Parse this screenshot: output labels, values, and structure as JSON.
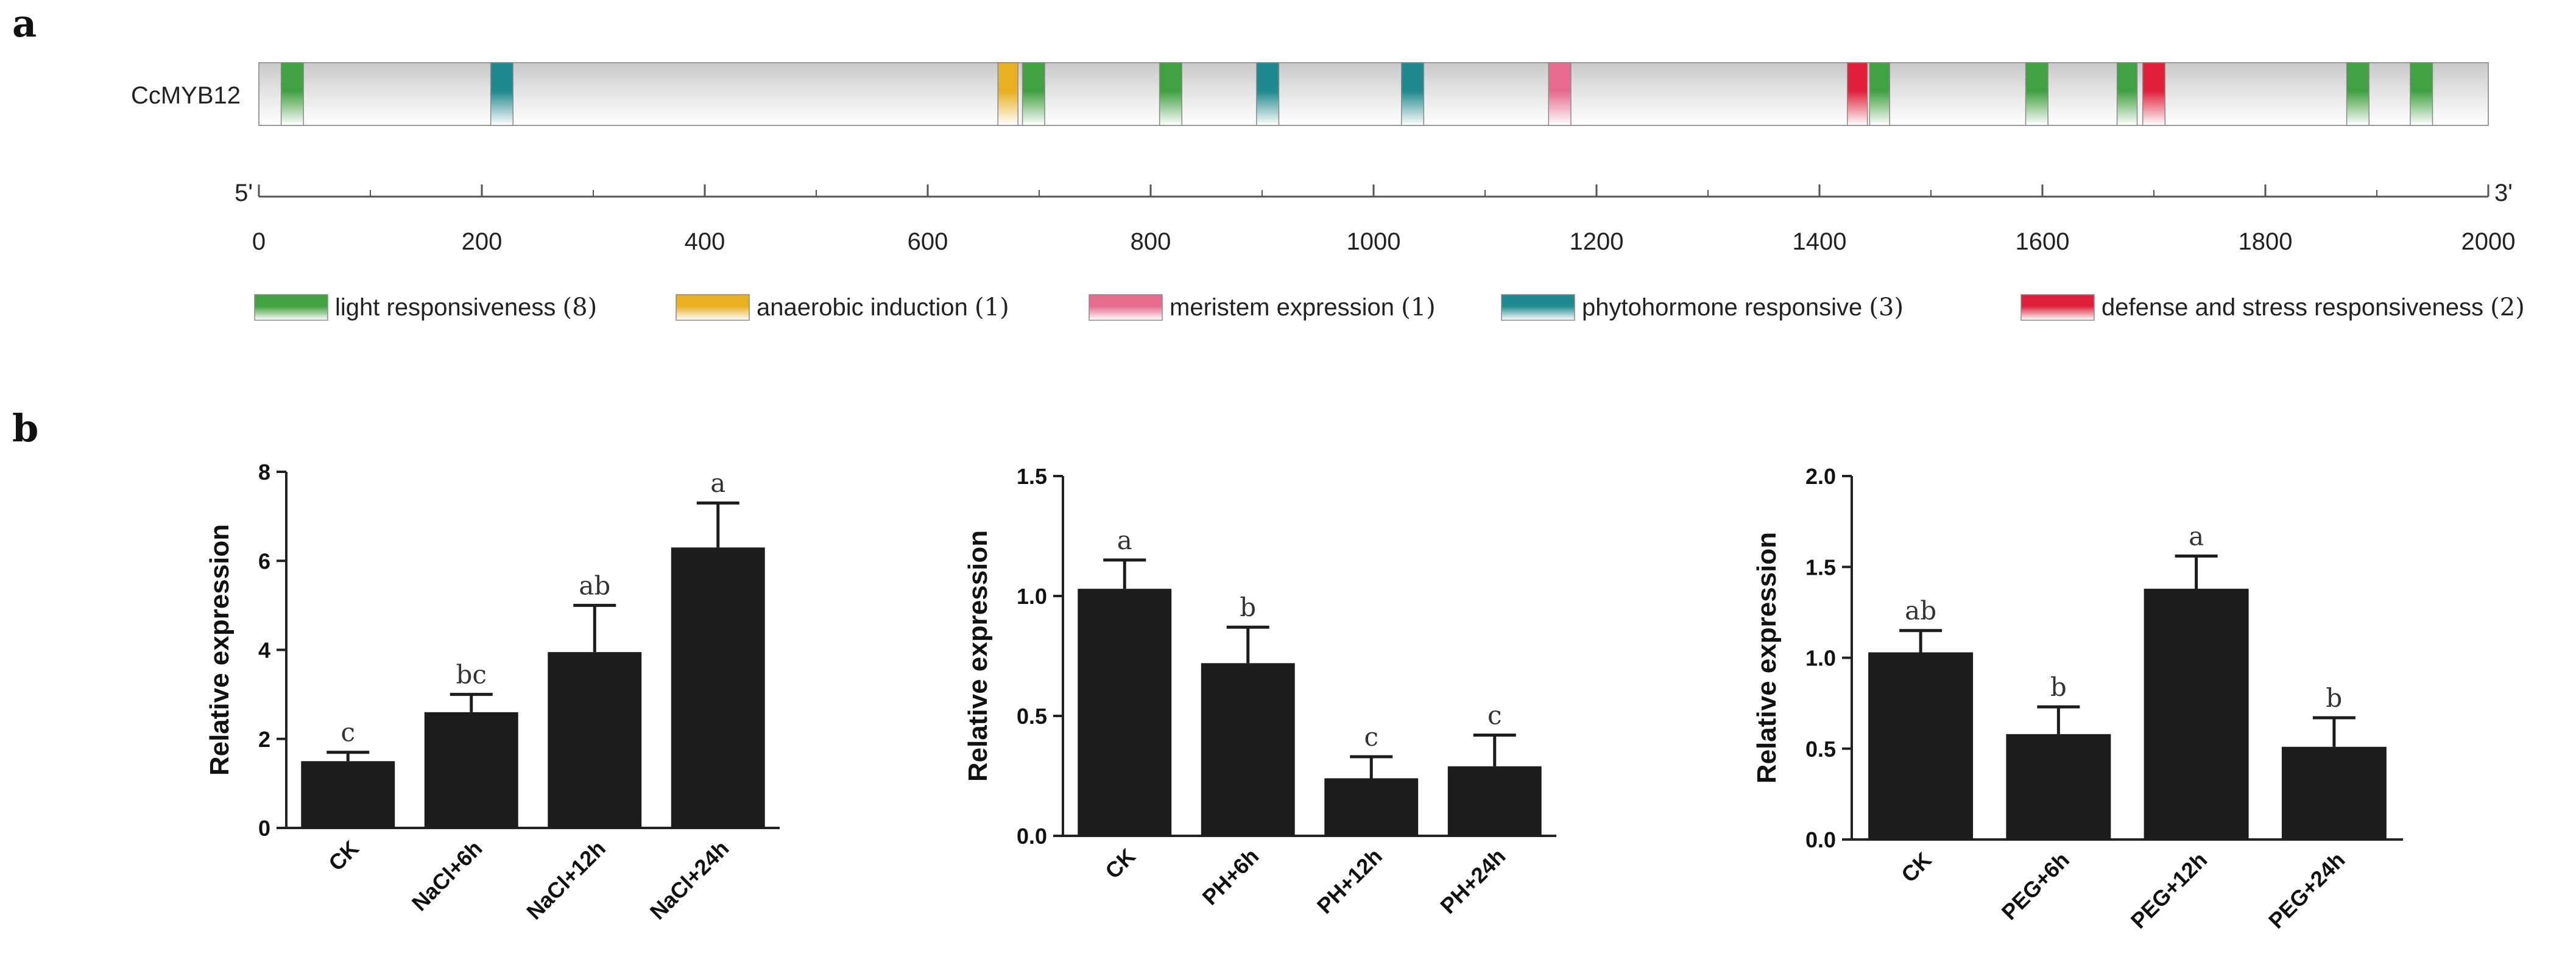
{
  "panel_a_letter": "a",
  "panel_b_letter": "b",
  "chart_data": [
    {
      "type": "promoter-map",
      "gene": "CcMYB12",
      "ends": [
        "5'",
        "3'"
      ],
      "xlim": [
        0,
        2000
      ],
      "ticks": [
        0,
        200,
        400,
        600,
        800,
        1000,
        1200,
        1400,
        1600,
        1800,
        2000
      ],
      "colors": {
        "light": "#3fa13f",
        "anaerobic": "#e8b020",
        "meristem": "#e66a8c",
        "phyto": "#1e8a8f",
        "defense": "#e0203a"
      },
      "legend": [
        {
          "key": "light",
          "label": "light responsiveness",
          "count": "(8)"
        },
        {
          "key": "anaerobic",
          "label": "anaerobic induction",
          "count": "(1)"
        },
        {
          "key": "meristem",
          "label": "meristem expression",
          "count": "(1)"
        },
        {
          "key": "phyto",
          "label": "phytohormone responsive",
          "count": "(3)"
        },
        {
          "key": "defense",
          "label": "defense and stress responsiveness",
          "count": "(2)"
        }
      ],
      "elements": [
        {
          "key": "light",
          "start": 20,
          "end": 40
        },
        {
          "key": "phyto",
          "start": 208,
          "end": 228
        },
        {
          "key": "anaerobic",
          "start": 663,
          "end": 681
        },
        {
          "key": "light",
          "start": 685,
          "end": 705
        },
        {
          "key": "light",
          "start": 808,
          "end": 828
        },
        {
          "key": "phyto",
          "start": 895,
          "end": 915
        },
        {
          "key": "phyto",
          "start": 1025,
          "end": 1045
        },
        {
          "key": "meristem",
          "start": 1157,
          "end": 1177
        },
        {
          "key": "defense",
          "start": 1425,
          "end": 1443
        },
        {
          "key": "light",
          "start": 1445,
          "end": 1463
        },
        {
          "key": "light",
          "start": 1585,
          "end": 1605
        },
        {
          "key": "light",
          "start": 1667,
          "end": 1685
        },
        {
          "key": "defense",
          "start": 1690,
          "end": 1710
        },
        {
          "key": "light",
          "start": 1873,
          "end": 1893
        },
        {
          "key": "light",
          "start": 1930,
          "end": 1950
        }
      ]
    },
    {
      "type": "bar",
      "ylabel": "Relative expression",
      "ylim": [
        0,
        8
      ],
      "yticks": [
        "0",
        "2",
        "4",
        "6",
        "8"
      ],
      "categories": [
        "CK",
        "NaCl+6h",
        "NaCl+12h",
        "NaCl+24h"
      ],
      "values": [
        1.5,
        2.6,
        3.95,
        6.3
      ],
      "errors": [
        0.2,
        0.4,
        1.05,
        1.0
      ],
      "letters": [
        "c",
        "bc",
        "ab",
        "a"
      ]
    },
    {
      "type": "bar",
      "ylabel": "Relative expression",
      "ylim": [
        0,
        1.5
      ],
      "yticks": [
        "0.0",
        "0.5",
        "1.0",
        "1.5"
      ],
      "categories": [
        "CK",
        "PH+6h",
        "PH+12h",
        "PH+24h"
      ],
      "values": [
        1.03,
        0.72,
        0.24,
        0.29
      ],
      "errors": [
        0.12,
        0.15,
        0.09,
        0.13
      ],
      "letters": [
        "a",
        "b",
        "c",
        "c"
      ]
    },
    {
      "type": "bar",
      "ylabel": "Relative expression",
      "ylim": [
        0,
        2.0
      ],
      "yticks": [
        "0.0",
        "0.5",
        "1.0",
        "1.5",
        "2.0"
      ],
      "categories": [
        "CK",
        "PEG+6h",
        "PEG+12h",
        "PEG+24h"
      ],
      "values": [
        1.03,
        0.58,
        1.38,
        0.51
      ],
      "errors": [
        0.12,
        0.15,
        0.18,
        0.16
      ],
      "letters": [
        "ab",
        "b",
        "a",
        "b"
      ]
    }
  ]
}
